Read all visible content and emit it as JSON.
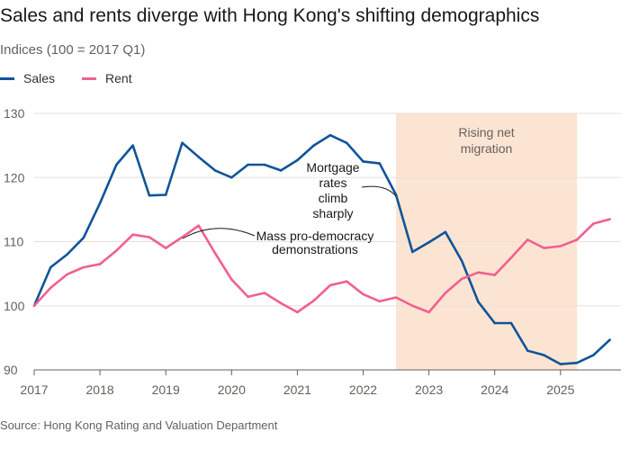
{
  "title": "Sales and rents diverge with Hong Kong's shifting demographics",
  "subtitle": "Indices (100 = 2017 Q1)",
  "source": "Source: Hong Kong Rating and Valuation Department",
  "chart_data": {
    "type": "line",
    "title": "Sales and rents diverge with Hong Kong's shifting demographics",
    "ylabel": "Indices (100 = 2017 Q1)",
    "ylim": [
      90,
      130
    ],
    "yticks": [
      "130",
      "120",
      "110",
      "100",
      "90"
    ],
    "xlim": [
      2017,
      2026
    ],
    "xticks": [
      "2017",
      "2018",
      "2019",
      "2020",
      "2021",
      "2022",
      "2023",
      "2024",
      "2025"
    ],
    "grid": true,
    "legend": "top-left",
    "x": [
      "2017Q1",
      "2017Q2",
      "2017Q3",
      "2017Q4",
      "2018Q1",
      "2018Q2",
      "2018Q3",
      "2018Q4",
      "2019Q1",
      "2019Q2",
      "2019Q3",
      "2019Q4",
      "2020Q1",
      "2020Q2",
      "2020Q3",
      "2020Q4",
      "2021Q1",
      "2021Q2",
      "2021Q3",
      "2021Q4",
      "2022Q1",
      "2022Q2",
      "2022Q3",
      "2022Q4",
      "2023Q1",
      "2023Q2",
      "2023Q3",
      "2023Q4",
      "2024Q1",
      "2024Q2",
      "2024Q3",
      "2024Q4",
      "2025Q1",
      "2025Q2",
      "2025Q3",
      "2025Q4"
    ],
    "series": [
      {
        "name": "Sales",
        "color": "#0f5499",
        "values": [
          100,
          106,
          108,
          110.6,
          116,
          122,
          125,
          117.2,
          117.3,
          125.4,
          123.2,
          121.1,
          120,
          122,
          122,
          121.1,
          122.7,
          125,
          126.6,
          125.4,
          122.5,
          122.2,
          117.3,
          108.4,
          109.9,
          111.5,
          107,
          100.6,
          97.3,
          97.3,
          93,
          92.3,
          90.9,
          91.1,
          92.3,
          94.7
        ]
      },
      {
        "name": "Rent",
        "color": "#f1608f",
        "values": [
          100,
          102.8,
          104.9,
          106,
          106.5,
          108.6,
          111.1,
          110.7,
          109,
          110.7,
          112.5,
          108.2,
          104.1,
          101.4,
          102,
          100.4,
          99,
          100.8,
          103.2,
          103.8,
          101.8,
          100.7,
          101.3,
          100,
          99,
          102,
          104.2,
          105.2,
          104.8,
          107.5,
          110.3,
          109,
          109.3,
          110.3,
          112.8,
          113.5
        ]
      }
    ],
    "shaded_region": {
      "from": 2022.5,
      "to": 2025.25,
      "label": "Rising net migration",
      "color": "#fce4d3"
    },
    "annotations": [
      {
        "text_lines": [
          "Mortgage",
          "rates",
          "climb",
          "sharply"
        ],
        "at": "2022Q3"
      },
      {
        "text_lines": [
          "Mass pro-democracy",
          "demonstrations"
        ],
        "at": "2019Q2"
      }
    ]
  }
}
